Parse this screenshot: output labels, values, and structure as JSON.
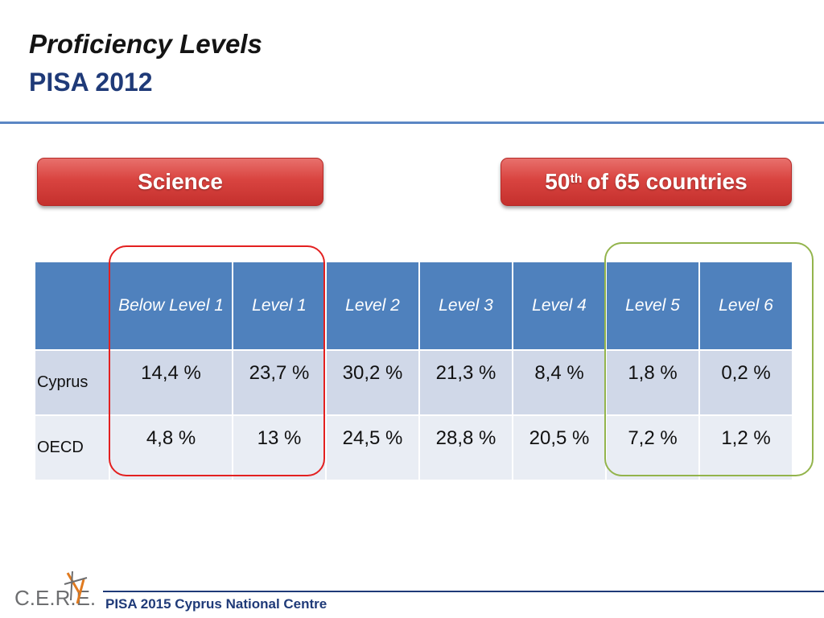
{
  "slide": {
    "title": "Proficiency Levels",
    "subtitle": "PISA 2012"
  },
  "badges": {
    "subject": "Science",
    "rank_number": "50",
    "rank_suffix": "th",
    "rank_rest": "of 65 countries"
  },
  "table": {
    "headers": [
      "",
      "Below Level 1",
      "Level 1",
      "Level 2",
      "Level 3",
      "Level 4",
      "Level 5",
      "Level 6"
    ],
    "rows": [
      {
        "country": "Cyprus",
        "values": [
          "14,4 %",
          "23,7 %",
          "30,2 %",
          "21,3 %",
          "8,4 %",
          "1,8 %",
          "0,2 %"
        ]
      },
      {
        "country": "OECD",
        "values": [
          "4,8 %",
          "13 %",
          "24,5 %",
          "28,8 %",
          "20,5 %",
          "7,2 %",
          "1,2 %"
        ]
      }
    ]
  },
  "footer": {
    "logo_text": "C.E.R.E.",
    "text": "PISA 2015 Cyprus National Centre"
  },
  "colors": {
    "accent_blue": "#4f81bd",
    "title_blue": "#1f3a78",
    "badge_red": "#d94440",
    "highlight_red": "#e32020",
    "highlight_green": "#93b44c"
  }
}
